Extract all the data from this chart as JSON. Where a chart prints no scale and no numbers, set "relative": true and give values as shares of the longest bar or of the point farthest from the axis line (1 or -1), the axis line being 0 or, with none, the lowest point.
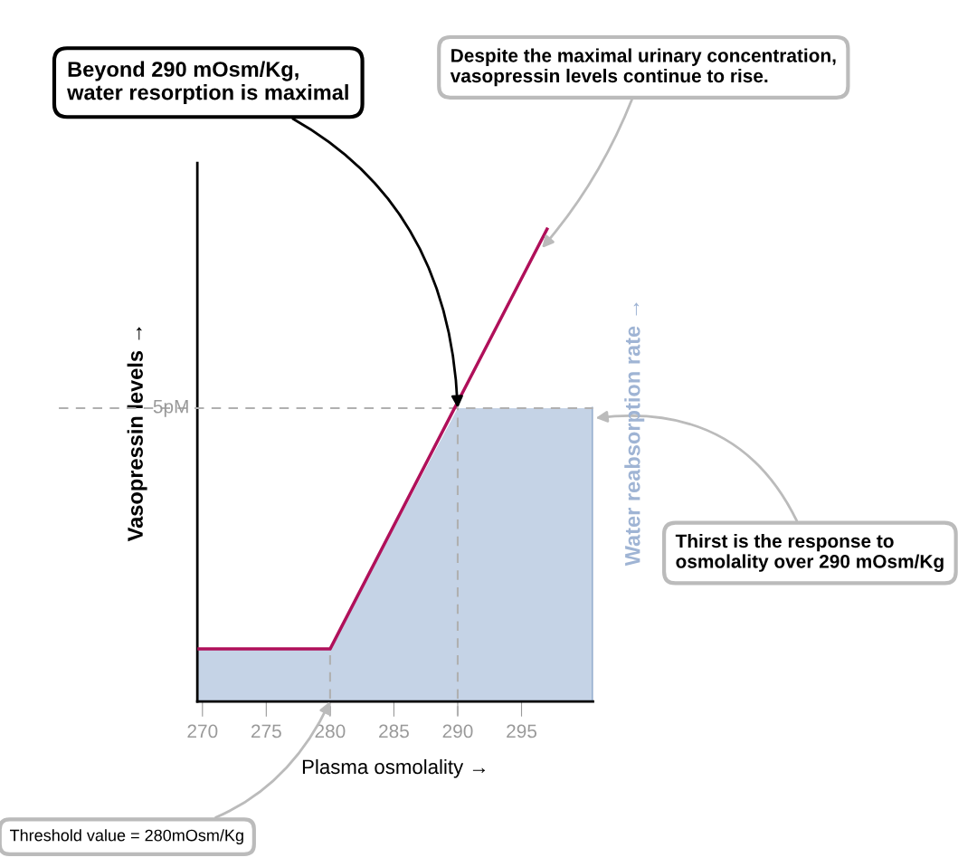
{
  "chart_data": {
    "type": "line",
    "relative": true,
    "xlabel": "Plasma osmolality →",
    "ylabel": "Vasopressin levels →",
    "xlim": [
      269.6,
      300.6
    ],
    "xticks": [
      270,
      275,
      280,
      285,
      290,
      295
    ],
    "y2label": "Water reabsorption rate →",
    "grid": false,
    "tick_labels": "x",
    "series": [
      {
        "type": "area",
        "color": "#c5d3e6",
        "x": [
          269.6,
          280,
          290,
          300.6
        ],
        "values": [
          0.111,
          0.111,
          0.621,
          0.621
        ]
      },
      {
        "color": "#b0105a",
        "x": [
          269.6,
          280,
          297
        ],
        "values": [
          0.111,
          0.111,
          1
        ]
      }
    ],
    "ref_lines": [
      {
        "axis": "y",
        "value": 0.621,
        "label": "5pM",
        "color": "#b0b0b0",
        "line_style": "dashed"
      },
      {
        "axis": "x",
        "value": 280,
        "color": "#b0b0b0",
        "line_style": "dashed"
      },
      {
        "axis": "x",
        "value": 290,
        "color": "#b0b0b0",
        "line_style": "dashed"
      }
    ],
    "annotations": [
      {
        "text": "Beyond 290 mOsm/Kg,\nwater resorption is maximal",
        "x": 290,
        "y": 0.621
      },
      {
        "text": "Despite the maximal urinary concentration,\nvasopressin levels continue to rise.",
        "x": 296.6,
        "y": 0.96
      },
      {
        "text": "Thirst is the response to\nosmolality over 290 mOsm/Kg",
        "x": 300.8,
        "y": 0.6
      },
      {
        "text": "Threshold value = 280mOsm/Kg",
        "x": 280,
        "y": 0
      }
    ]
  }
}
